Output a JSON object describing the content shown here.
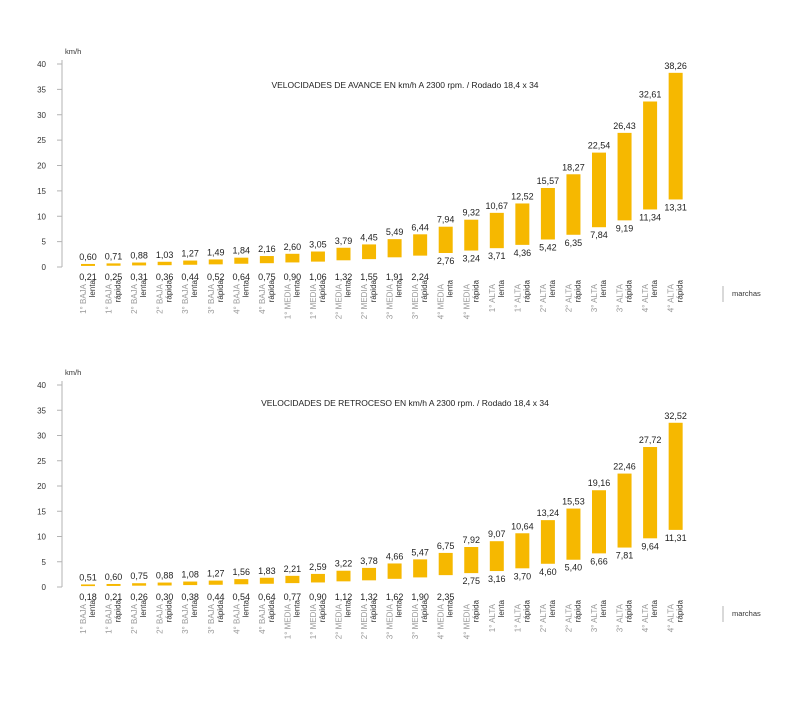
{
  "colors": {
    "bar": "#f6b800",
    "axis": "#b3b3b3",
    "category_main": "#999999"
  },
  "chart_data": [
    {
      "type": "bar",
      "title": "VELOCIDADES DE AVANCE EN km/h A 2300 rpm. / Rodado 18,4 x 34",
      "ylabel": "km/h",
      "xlabel": "marchas",
      "ylim": [
        0,
        40
      ],
      "yticks": [
        "0",
        "5",
        "10",
        "15",
        "20",
        "25",
        "30",
        "35",
        "40"
      ],
      "categories": [
        {
          "gear": "1° BAJA",
          "mode": "lenta",
          "low": 0.21,
          "high": 0.6,
          "low_label": "0,21",
          "high_label": "0,60"
        },
        {
          "gear": "1° BAJA",
          "mode": "rápida",
          "low": 0.25,
          "high": 0.71,
          "low_label": "0,25",
          "high_label": "0,71"
        },
        {
          "gear": "2° BAJA",
          "mode": "lenta",
          "low": 0.31,
          "high": 0.88,
          "low_label": "0,31",
          "high_label": "0,88"
        },
        {
          "gear": "2° BAJA",
          "mode": "rápida",
          "low": 0.36,
          "high": 1.03,
          "low_label": "0,36",
          "high_label": "1,03"
        },
        {
          "gear": "3° BAJA",
          "mode": "lenta",
          "low": 0.44,
          "high": 1.27,
          "low_label": "0,44",
          "high_label": "1,27"
        },
        {
          "gear": "3° BAJA",
          "mode": "rápida",
          "low": 0.52,
          "high": 1.49,
          "low_label": "0,52",
          "high_label": "1,49"
        },
        {
          "gear": "4° BAJA",
          "mode": "lenta",
          "low": 0.64,
          "high": 1.84,
          "low_label": "0,64",
          "high_label": "1,84"
        },
        {
          "gear": "4° BAJA",
          "mode": "rápida",
          "low": 0.75,
          "high": 2.16,
          "low_label": "0,75",
          "high_label": "2,16"
        },
        {
          "gear": "1° MEDIA",
          "mode": "lenta",
          "low": 0.9,
          "high": 2.6,
          "low_label": "0,90",
          "high_label": "2,60"
        },
        {
          "gear": "1° MEDIA",
          "mode": "rápida",
          "low": 1.06,
          "high": 3.05,
          "low_label": "1,06",
          "high_label": "3,05"
        },
        {
          "gear": "2° MEDIA",
          "mode": "lenta",
          "low": 1.32,
          "high": 3.79,
          "low_label": "1,32",
          "high_label": "3,79"
        },
        {
          "gear": "2° MEDIA",
          "mode": "rápida",
          "low": 1.55,
          "high": 4.45,
          "low_label": "1,55",
          "high_label": "4,45"
        },
        {
          "gear": "3° MEDIA",
          "mode": "lenta",
          "low": 1.91,
          "high": 5.49,
          "low_label": "1,91",
          "high_label": "5,49"
        },
        {
          "gear": "3° MEDIA",
          "mode": "rápida",
          "low": 2.24,
          "high": 6.44,
          "low_label": "2,24",
          "high_label": "6,44"
        },
        {
          "gear": "4° MEDIA",
          "mode": "lenta",
          "low": 2.76,
          "high": 7.94,
          "low_label": "2,76",
          "high_label": "7,94"
        },
        {
          "gear": "4° MEDIA",
          "mode": "rápida",
          "low": 3.24,
          "high": 9.32,
          "low_label": "3,24",
          "high_label": "9,32"
        },
        {
          "gear": "1° ALTA",
          "mode": "lenta",
          "low": 3.71,
          "high": 10.67,
          "low_label": "3,71",
          "high_label": "10,67"
        },
        {
          "gear": "1° ALTA",
          "mode": "rápida",
          "low": 4.36,
          "high": 12.52,
          "low_label": "4,36",
          "high_label": "12,52"
        },
        {
          "gear": "2° ALTA",
          "mode": "lenta",
          "low": 5.42,
          "high": 15.57,
          "low_label": "5,42",
          "high_label": "15,57"
        },
        {
          "gear": "2° ALTA",
          "mode": "rápida",
          "low": 6.35,
          "high": 18.27,
          "low_label": "6,35",
          "high_label": "18,27"
        },
        {
          "gear": "3° ALTA",
          "mode": "lenta",
          "low": 7.84,
          "high": 22.54,
          "low_label": "7,84",
          "high_label": "22,54"
        },
        {
          "gear": "3° ALTA",
          "mode": "rápida",
          "low": 9.19,
          "high": 26.43,
          "low_label": "9,19",
          "high_label": "26,43"
        },
        {
          "gear": "4° ALTA",
          "mode": "lenta",
          "low": 11.34,
          "high": 32.61,
          "low_label": "11,34",
          "high_label": "32,61"
        },
        {
          "gear": "4° ALTA",
          "mode": "rápida",
          "low": 13.31,
          "high": 38.26,
          "low_label": "13,31",
          "high_label": "38,26"
        }
      ]
    },
    {
      "type": "bar",
      "title": "VELOCIDADES DE RETROCESO EN km/h A 2300 rpm. / Rodado 18,4 x 34",
      "ylabel": "km/h",
      "xlabel": "marchas",
      "ylim": [
        0,
        40
      ],
      "yticks": [
        "0",
        "5",
        "10",
        "15",
        "20",
        "25",
        "30",
        "35",
        "40"
      ],
      "categories": [
        {
          "gear": "1° BAJA",
          "mode": "lenta",
          "low": 0.18,
          "high": 0.51,
          "low_label": "0,18",
          "high_label": "0,51"
        },
        {
          "gear": "1° BAJA",
          "mode": "rápida",
          "low": 0.21,
          "high": 0.6,
          "low_label": "0,21",
          "high_label": "0,60"
        },
        {
          "gear": "2° BAJA",
          "mode": "lenta",
          "low": 0.26,
          "high": 0.75,
          "low_label": "0,26",
          "high_label": "0,75"
        },
        {
          "gear": "2° BAJA",
          "mode": "rápida",
          "low": 0.3,
          "high": 0.88,
          "low_label": "0,30",
          "high_label": "0,88"
        },
        {
          "gear": "3° BAJA",
          "mode": "lenta",
          "low": 0.38,
          "high": 1.08,
          "low_label": "0,38",
          "high_label": "1,08"
        },
        {
          "gear": "3° BAJA",
          "mode": "rápida",
          "low": 0.44,
          "high": 1.27,
          "low_label": "0,44",
          "high_label": "1,27"
        },
        {
          "gear": "4° BAJA",
          "mode": "lenta",
          "low": 0.54,
          "high": 1.56,
          "low_label": "0,54",
          "high_label": "1,56"
        },
        {
          "gear": "4° BAJA",
          "mode": "rápida",
          "low": 0.64,
          "high": 1.83,
          "low_label": "0,64",
          "high_label": "1,83"
        },
        {
          "gear": "1° MEDIA",
          "mode": "lenta",
          "low": 0.77,
          "high": 2.21,
          "low_label": "0,77",
          "high_label": "2,21"
        },
        {
          "gear": "1° MEDIA",
          "mode": "rápida",
          "low": 0.9,
          "high": 2.59,
          "low_label": "0,90",
          "high_label": "2,59"
        },
        {
          "gear": "2° MEDIA",
          "mode": "lenta",
          "low": 1.12,
          "high": 3.22,
          "low_label": "1,12",
          "high_label": "3,22"
        },
        {
          "gear": "2° MEDIA",
          "mode": "rápida",
          "low": 1.32,
          "high": 3.78,
          "low_label": "1,32",
          "high_label": "3,78"
        },
        {
          "gear": "3° MEDIA",
          "mode": "lenta",
          "low": 1.62,
          "high": 4.66,
          "low_label": "1,62",
          "high_label": "4,66"
        },
        {
          "gear": "3° MEDIA",
          "mode": "rápida",
          "low": 1.9,
          "high": 5.47,
          "low_label": "1,90",
          "high_label": "5,47"
        },
        {
          "gear": "4° MEDIA",
          "mode": "lenta",
          "low": 2.35,
          "high": 6.75,
          "low_label": "2,35",
          "high_label": "6,75"
        },
        {
          "gear": "4° MEDIA",
          "mode": "rápida",
          "low": 2.75,
          "high": 7.92,
          "low_label": "2,75",
          "high_label": "7,92"
        },
        {
          "gear": "1° ALTA",
          "mode": "lenta",
          "low": 3.16,
          "high": 9.07,
          "low_label": "3,16",
          "high_label": "9,07"
        },
        {
          "gear": "1° ALTA",
          "mode": "rápida",
          "low": 3.7,
          "high": 10.64,
          "low_label": "3,70",
          "high_label": "10,64"
        },
        {
          "gear": "2° ALTA",
          "mode": "lenta",
          "low": 4.6,
          "high": 13.24,
          "low_label": "4,60",
          "high_label": "13,24"
        },
        {
          "gear": "2° ALTA",
          "mode": "rápida",
          "low": 5.4,
          "high": 15.53,
          "low_label": "5,40",
          "high_label": "15,53"
        },
        {
          "gear": "3° ALTA",
          "mode": "lenta",
          "low": 6.66,
          "high": 19.16,
          "low_label": "6,66",
          "high_label": "19,16"
        },
        {
          "gear": "3° ALTA",
          "mode": "rápida",
          "low": 7.81,
          "high": 22.46,
          "low_label": "7,81",
          "high_label": "22,46"
        },
        {
          "gear": "4° ALTA",
          "mode": "lenta",
          "low": 9.64,
          "high": 27.72,
          "low_label": "9,64",
          "high_label": "27,72"
        },
        {
          "gear": "4° ALTA",
          "mode": "rápida",
          "low": 11.31,
          "high": 32.52,
          "low_label": "11,31",
          "high_label": "32,52"
        }
      ]
    }
  ]
}
